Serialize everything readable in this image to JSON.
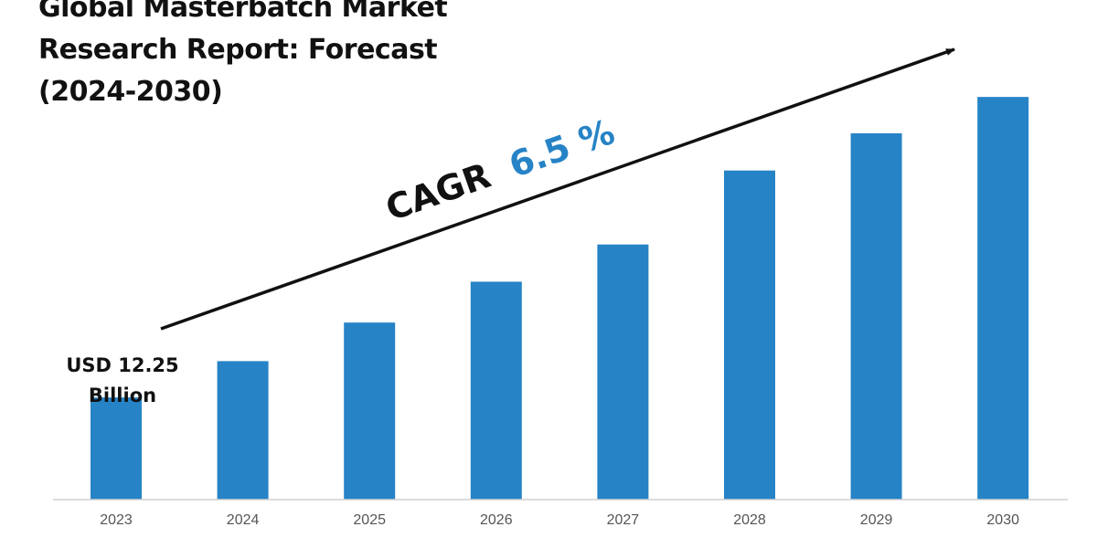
{
  "title_lines": [
    "Global Masterbatch Market",
    "Research Report: Forecast",
    "(2024-2030)"
  ],
  "colors": {
    "bar": "#2683c6",
    "cagr_value": "#2683c6",
    "text": "#111111",
    "axis": "#d0d0d0"
  },
  "annotations": {
    "cagr_label": "CAGR",
    "cagr_value": "6.5 %",
    "start_label_line1": "USD 12.25",
    "start_label_line2": "Billion"
  },
  "chart_data": {
    "type": "bar",
    "title": "Global Masterbatch Market Research Report: Forecast (2024-2030)",
    "categories": [
      "2023",
      "2024",
      "2025",
      "2026",
      "2027",
      "2028",
      "2029",
      "2030"
    ],
    "values": [
      12.25,
      13.05,
      13.9,
      14.8,
      15.62,
      17.25,
      18.07,
      18.87
    ],
    "ylim": [
      10.0,
      20.0
    ],
    "xlabel": "",
    "ylabel": "",
    "grid": false,
    "legend": "none",
    "cagr_percent": 6.5,
    "start_value_label": "USD 12.25 Billion"
  }
}
